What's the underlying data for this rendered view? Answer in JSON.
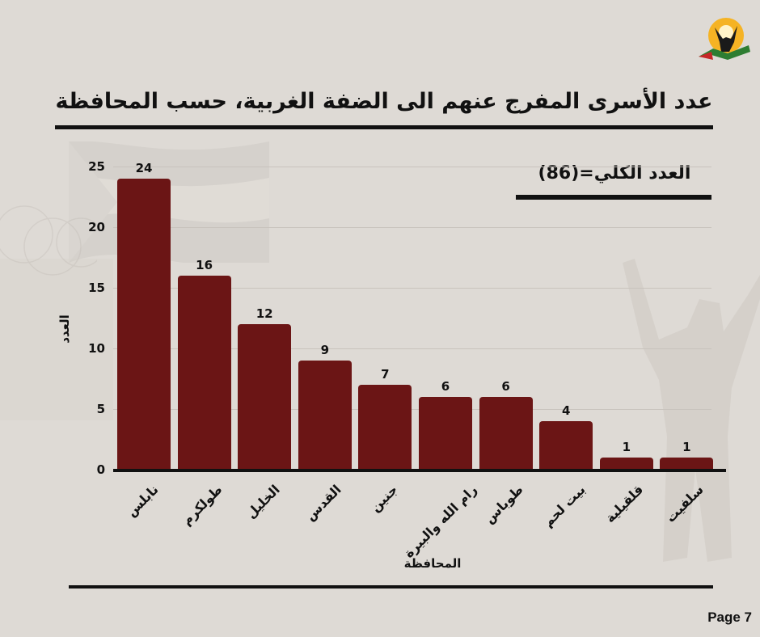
{
  "header": {
    "title": "عدد الأسرى المفرج عنهم الى الضفة الغربية، حسب المحافظة",
    "logo": "prisoners-affairs-logo"
  },
  "summary": {
    "total_label": "العدد الكلي=(86)"
  },
  "footer": {
    "page": "Page 7"
  },
  "colors": {
    "bar": "#6b1515",
    "background": "#dedad5",
    "text": "#111111"
  },
  "chart_data": {
    "type": "bar",
    "title": "عدد الأسرى المفرج عنهم الى الضفة الغربية، حسب المحافظة",
    "xlabel": "المحافظة",
    "ylabel": "العدد",
    "ylim": [
      0,
      25
    ],
    "yticks": [
      0,
      5,
      10,
      15,
      20,
      25
    ],
    "grid": true,
    "annotation": "العدد الكلي=(86)",
    "categories": [
      "نابلس",
      "طولكرم",
      "الخليل",
      "القدس",
      "جنين",
      "رام الله والبيرة",
      "طوباس",
      "بيت لحم",
      "قلقيلية",
      "سلفيت"
    ],
    "values": [
      24,
      16,
      12,
      9,
      7,
      6,
      6,
      4,
      1,
      1
    ],
    "ytick_labels": [
      "0",
      "5",
      "10",
      "15",
      "20",
      "25"
    ],
    "value_labels": [
      "24",
      "16",
      "12",
      "9",
      "7",
      "6",
      "6",
      "4",
      "1",
      "1"
    ]
  }
}
